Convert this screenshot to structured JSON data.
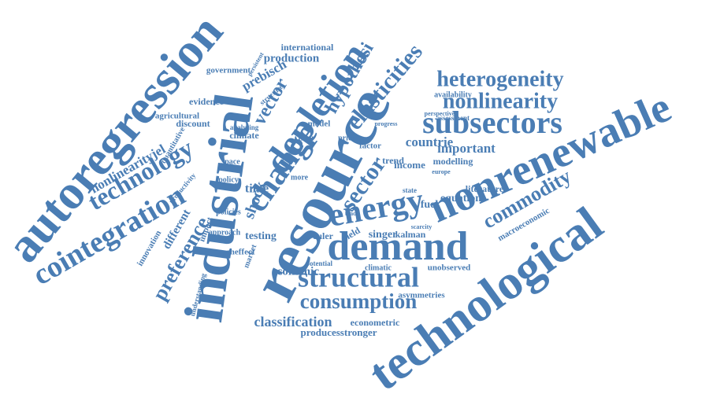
{
  "words": [
    "autoregression",
    "industrial",
    "resource",
    "nonrenewable",
    "technological",
    "depletion",
    "change",
    "demand",
    "energy",
    "cointegration",
    "technology",
    "structural",
    "consumption",
    "subsectors",
    "heterogeneity",
    "nonlinearity",
    "elasticities",
    "hypothesi",
    "commodity",
    "sector",
    "preference",
    "countrie",
    "important",
    "vector",
    "shock",
    "prebisch",
    "production",
    "international",
    "government",
    "evidence",
    "agricultural",
    "discount",
    "quantitative",
    "nonlinearityjel",
    "productivity",
    "different",
    "innovation",
    "understanding",
    "impact",
    "approach",
    "sucheffect",
    "policy",
    "policies",
    "space",
    "climate",
    "analysing",
    "time",
    "testing",
    "market",
    "economic",
    "classification",
    "producesstronger",
    "econometric",
    "asymmetries",
    "unobserved",
    "potential",
    "climatic",
    "euler",
    "yield",
    "singer",
    "kalman",
    "scarcity",
    "macroeconomic",
    "literature",
    "equation",
    "fuel",
    "state",
    "income",
    "trend",
    "modelling",
    "europe",
    "factor",
    "price",
    "progress",
    "model",
    "filter",
    "structure",
    "persistent",
    "assessment",
    "availability",
    "perspective",
    "trade",
    "more"
  ]
}
